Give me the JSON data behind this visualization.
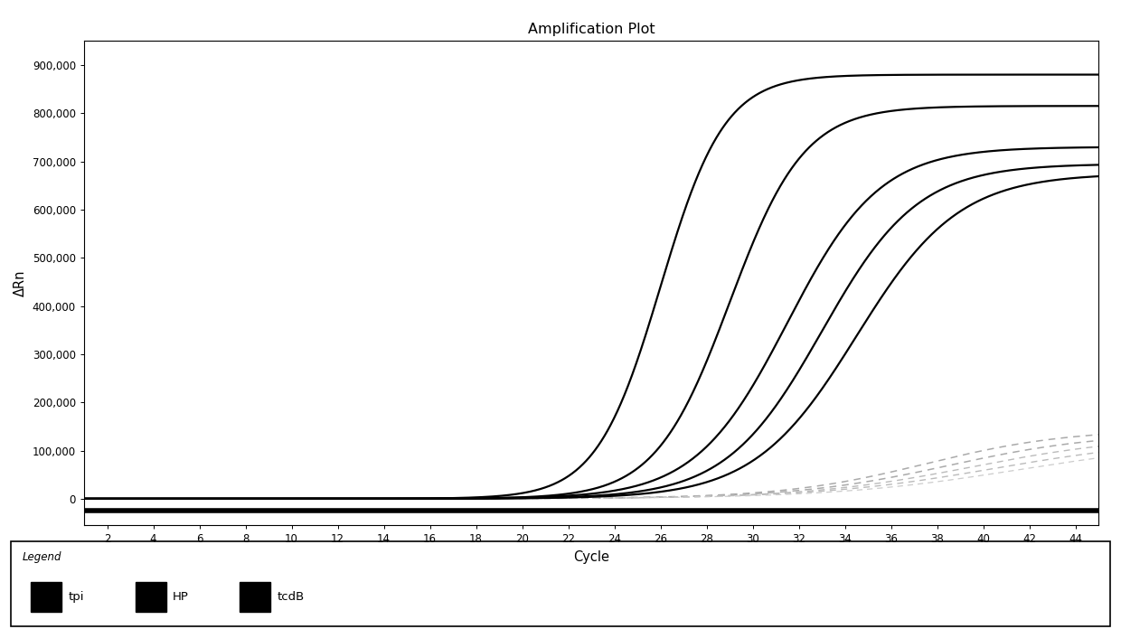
{
  "title": "Amplification Plot",
  "xlabel": "Cycle",
  "ylabel": "ΔRn",
  "xlim": [
    1,
    45
  ],
  "ylim": [
    -55000,
    950000
  ],
  "xticks": [
    2,
    4,
    6,
    8,
    10,
    12,
    14,
    16,
    18,
    20,
    22,
    24,
    26,
    28,
    30,
    32,
    34,
    36,
    38,
    40,
    42,
    44
  ],
  "yticks": [
    0,
    100000,
    200000,
    300000,
    400000,
    500000,
    600000,
    700000,
    800000,
    900000
  ],
  "ytick_labels": [
    "0",
    "100,000",
    "200,000",
    "300,000",
    "400,000",
    "500,000",
    "600,000",
    "700,000",
    "800,000",
    "900,000"
  ],
  "sigmoid_curves": [
    {
      "L": 880000,
      "k": 0.72,
      "x0": 26.0,
      "color": "#000000",
      "lw": 1.6
    },
    {
      "L": 815000,
      "k": 0.62,
      "x0": 29.0,
      "color": "#000000",
      "lw": 1.6
    },
    {
      "L": 730000,
      "k": 0.5,
      "x0": 31.5,
      "color": "#000000",
      "lw": 1.6
    },
    {
      "L": 695000,
      "k": 0.48,
      "x0": 33.0,
      "color": "#000000",
      "lw": 1.6
    },
    {
      "L": 675000,
      "k": 0.45,
      "x0": 34.5,
      "color": "#000000",
      "lw": 1.6
    }
  ],
  "dashed_curves": [
    {
      "L": 145000,
      "k": 0.32,
      "x0": 37.5,
      "color": "#aaaaaa",
      "lw": 1.1
    },
    {
      "L": 138000,
      "k": 0.3,
      "x0": 38.5,
      "color": "#aaaaaa",
      "lw": 1.1
    },
    {
      "L": 132000,
      "k": 0.28,
      "x0": 39.5,
      "color": "#bbbbbb",
      "lw": 1.0
    },
    {
      "L": 126000,
      "k": 0.26,
      "x0": 40.5,
      "color": "#bbbbbb",
      "lw": 1.0
    },
    {
      "L": 120000,
      "k": 0.25,
      "x0": 41.5,
      "color": "#cccccc",
      "lw": 0.9
    }
  ],
  "flat_line_y": -25000,
  "flat_line_color": "#000000",
  "flat_line_lw": 4.0,
  "legend_labels": [
    "tpi",
    "HP",
    "tcdB"
  ],
  "legend_colors": [
    "#000000",
    "#000000",
    "#000000"
  ],
  "background_color": "#ffffff"
}
